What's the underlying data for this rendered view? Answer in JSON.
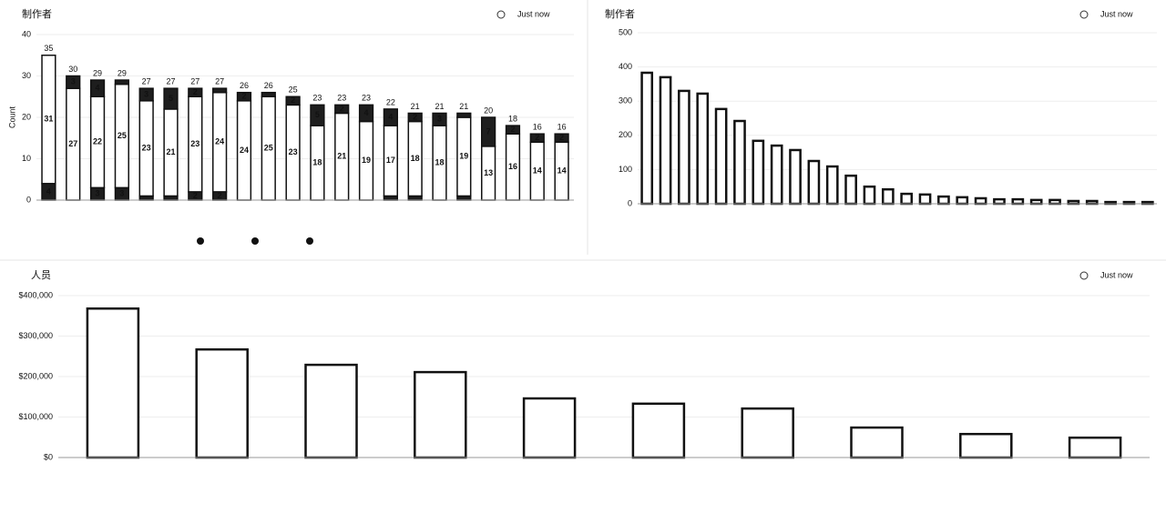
{
  "chart_data": [
    {
      "type": "bar",
      "title": "制作者",
      "status": "Just now",
      "ylabel": "Count",
      "categories": [
        null,
        null,
        null,
        null,
        null,
        null,
        null,
        null,
        null,
        null,
        null,
        null,
        null,
        null,
        null,
        null,
        null,
        null,
        null,
        null,
        null,
        null
      ],
      "ylim": [
        0,
        40
      ],
      "yticks": [
        0,
        10,
        20,
        30,
        40
      ],
      "totals": [
        35,
        30,
        29,
        29,
        27,
        27,
        27,
        27,
        26,
        26,
        25,
        23,
        23,
        23,
        22,
        21,
        21,
        21,
        20,
        18,
        16,
        16
      ],
      "series": [
        {
          "color": "#1e1e1e",
          "values": [
            4,
            0,
            3,
            3,
            1,
            1,
            2,
            2,
            0,
            0,
            0,
            0,
            0,
            0,
            1,
            1,
            0,
            1,
            0,
            0,
            0,
            0
          ]
        },
        {
          "color": "#ffffff",
          "values": [
            31,
            27,
            22,
            25,
            23,
            21,
            23,
            24,
            24,
            25,
            23,
            18,
            21,
            19,
            17,
            18,
            18,
            19,
            13,
            16,
            14,
            14
          ]
        },
        {
          "color": "#1e1e1e",
          "values": [
            0,
            3,
            4,
            1,
            3,
            5,
            2,
            1,
            2,
            1,
            2,
            5,
            2,
            4,
            4,
            2,
            3,
            1,
            7,
            2,
            2,
            2
          ]
        }
      ]
    },
    {
      "type": "bar",
      "title": "制作者",
      "status": "Just now",
      "categories": [
        null,
        null,
        null,
        null,
        null,
        null,
        null,
        null,
        null,
        null,
        null,
        null,
        null,
        null,
        null,
        null,
        null,
        null,
        null,
        null,
        null,
        null,
        null,
        null,
        null,
        null,
        null,
        null
      ],
      "ylim": [
        0,
        500
      ],
      "yticks": [
        0,
        100,
        200,
        300,
        400,
        500
      ],
      "color": "#ffffff",
      "values": [
        383,
        370,
        330,
        322,
        277,
        242,
        184,
        170,
        157,
        125,
        109,
        82,
        50,
        42,
        29,
        27,
        21,
        19,
        16,
        13,
        13,
        11,
        11,
        8,
        8,
        5,
        5,
        5
      ]
    },
    {
      "type": "bar",
      "title": "人员",
      "status": "Just now",
      "color": "#ffffff",
      "categories": [
        null,
        null,
        null,
        null,
        null,
        null,
        null,
        null,
        null,
        null
      ],
      "ylim": [
        0,
        400000
      ],
      "yticks": [
        {
          "value": 0,
          "label": "$0"
        },
        {
          "value": 100000,
          "label": "$100,000"
        },
        {
          "value": 200000,
          "label": "$200,000"
        },
        {
          "value": 300000,
          "label": "$300,000"
        },
        {
          "value": 400000,
          "label": "$400,000"
        }
      ],
      "values": [
        368000,
        267000,
        229000,
        211000,
        146000,
        133000,
        121000,
        74000,
        58000,
        49000
      ]
    }
  ]
}
